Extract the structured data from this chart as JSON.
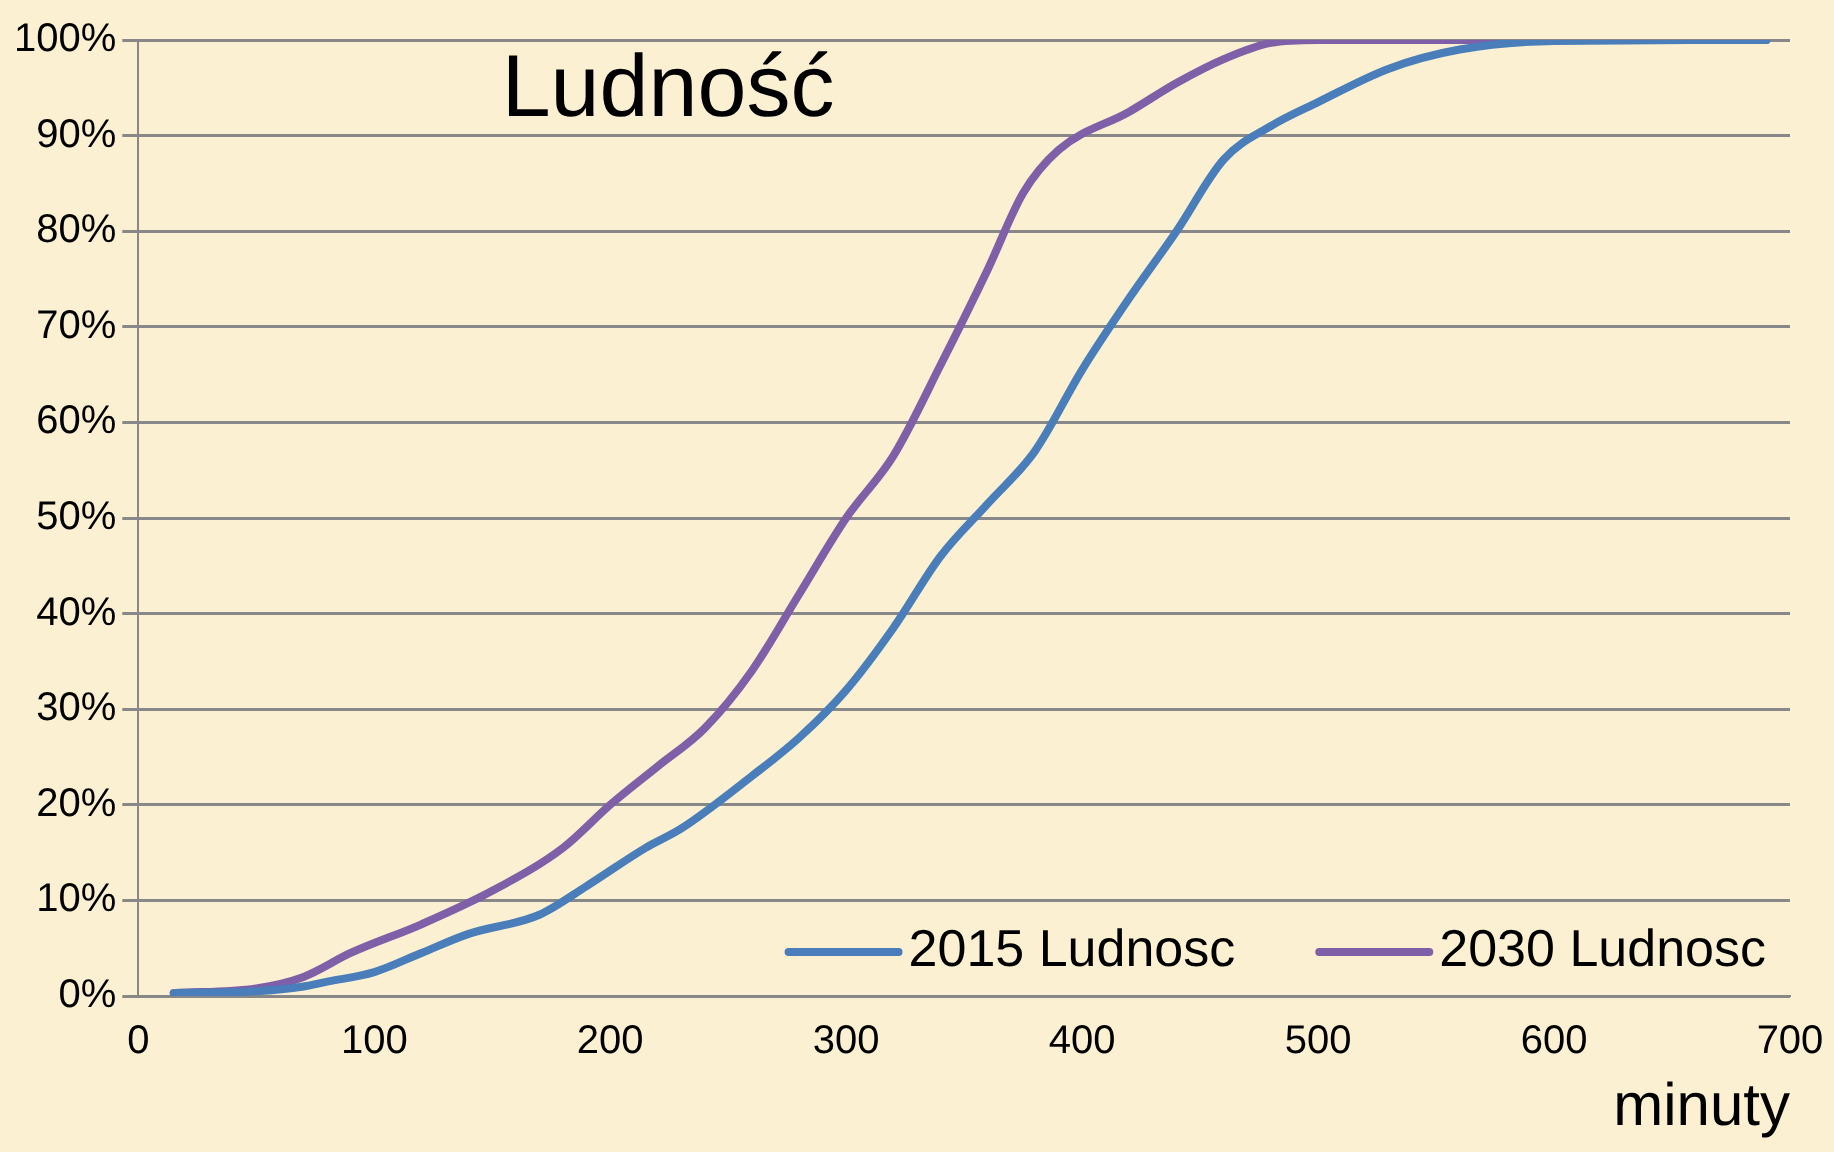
{
  "chart_data": {
    "type": "line",
    "title": "Ludność",
    "xlabel": "minuty",
    "xlim": [
      0,
      700
    ],
    "xticks": [
      0,
      100,
      200,
      300,
      400,
      500,
      600,
      700
    ],
    "ylim": [
      0,
      100
    ],
    "yticks": [
      {
        "value": 0,
        "label": "0%"
      },
      {
        "value": 10,
        "label": "10%"
      },
      {
        "value": 20,
        "label": "20%"
      },
      {
        "value": 30,
        "label": "30%"
      },
      {
        "value": 40,
        "label": "40%"
      },
      {
        "value": 50,
        "label": "50%"
      },
      {
        "value": 60,
        "label": "60%"
      },
      {
        "value": 70,
        "label": "70%"
      },
      {
        "value": 80,
        "label": "80%"
      },
      {
        "value": 90,
        "label": "90%"
      },
      {
        "value": 100,
        "label": "100%"
      }
    ],
    "grid": "y",
    "legend": "bottom right",
    "marker": "none",
    "line_style": "solid",
    "series": [
      {
        "name": "2015 Ludnosc",
        "color": "#4a7ebb",
        "x": [
          15,
          50,
          70,
          80,
          100,
          120,
          140,
          170,
          190,
          215,
          230,
          260,
          280,
          300,
          320,
          340,
          360,
          380,
          400,
          420,
          440,
          460,
          480,
          500,
          530,
          560,
          600,
          690
        ],
        "values": [
          0.3,
          0.5,
          1,
          1.5,
          2.5,
          4.5,
          6.5,
          8.5,
          11.5,
          15.5,
          17.5,
          23,
          27,
          32,
          38.5,
          46,
          51.5,
          57,
          65.5,
          73,
          80,
          87.5,
          91,
          93.5,
          97,
          99,
          99.9,
          100
        ]
      },
      {
        "name": "2030 Ludnosc",
        "color": "#7f5fa8",
        "x": [
          15,
          50,
          70,
          90,
          120,
          150,
          180,
          200,
          220,
          240,
          260,
          280,
          300,
          320,
          340,
          360,
          375,
          390,
          420,
          440,
          460,
          480,
          500,
          690
        ],
        "values": [
          0.3,
          0.8,
          2,
          4.5,
          7.5,
          11,
          15.5,
          20,
          24,
          28,
          34,
          42,
          50,
          56.5,
          66,
          76,
          84,
          88.5,
          92.5,
          95.5,
          98,
          99.7,
          100,
          100
        ]
      }
    ]
  }
}
